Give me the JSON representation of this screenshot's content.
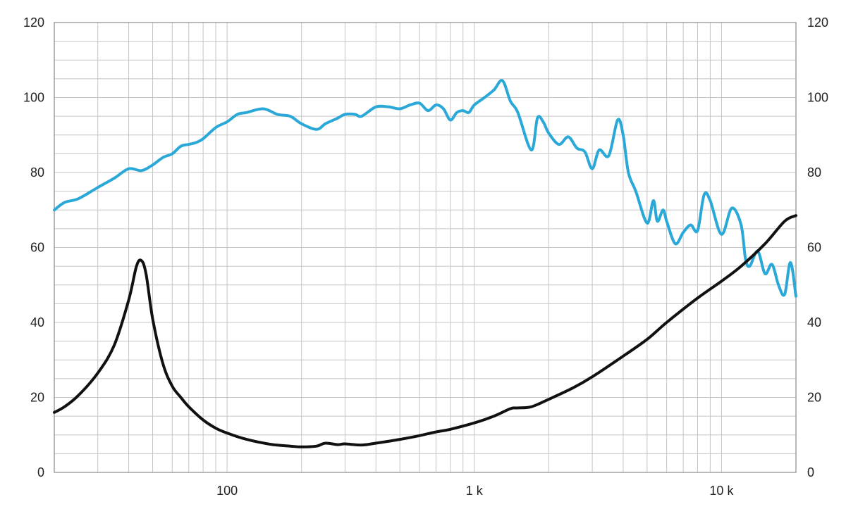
{
  "chart_data": {
    "type": "line",
    "x_scale": "log",
    "xlim": [
      20,
      20000
    ],
    "ylim": [
      0,
      120
    ],
    "grid": true,
    "x_tick_labels": [
      {
        "value": 100,
        "label": "100"
      },
      {
        "value": 1000,
        "label": "1 k"
      },
      {
        "value": 10000,
        "label": "10 k"
      }
    ],
    "y_tick_labels": [
      "0",
      "20",
      "40",
      "60",
      "80",
      "100",
      "120"
    ],
    "y_ticks": [
      0,
      20,
      40,
      60,
      80,
      100,
      120
    ],
    "series": [
      {
        "color": "#2aa8d8",
        "x": [
          20,
          22,
          25,
          30,
          35,
          40,
          45,
          50,
          55,
          60,
          65,
          70,
          75,
          80,
          90,
          100,
          110,
          120,
          140,
          160,
          180,
          200,
          230,
          250,
          280,
          300,
          330,
          350,
          400,
          450,
          500,
          550,
          600,
          650,
          700,
          750,
          800,
          850,
          900,
          950,
          1000,
          1100,
          1200,
          1300,
          1400,
          1500,
          1700,
          1800,
          1900,
          2000,
          2200,
          2400,
          2600,
          2800,
          3000,
          3200,
          3500,
          3800,
          4000,
          4200,
          4500,
          5000,
          5300,
          5500,
          5800,
          6000,
          6500,
          7000,
          7500,
          8000,
          8500,
          9000,
          10000,
          11000,
          12000,
          12500,
          13000,
          14000,
          15000,
          16000,
          17000,
          18000,
          19000,
          20000
        ],
        "y": [
          70,
          72,
          73,
          76,
          78.5,
          81,
          80.5,
          82,
          84,
          85,
          87,
          87.5,
          88,
          89,
          92,
          93.5,
          95.5,
          96,
          97,
          95.5,
          95,
          93,
          91.5,
          93,
          94.5,
          95.5,
          95.5,
          95,
          97.5,
          97.5,
          97,
          98,
          98.5,
          96.5,
          98,
          97,
          94,
          96,
          96.5,
          96,
          98,
          100,
          102,
          104.5,
          99,
          96,
          86,
          94.5,
          93.5,
          90.5,
          87.5,
          89.5,
          86.5,
          85.5,
          81,
          86,
          84.5,
          94,
          90,
          80,
          75,
          66.5,
          72.5,
          67,
          70,
          67,
          61,
          64,
          66,
          64.5,
          74,
          72.5,
          63.5,
          70.5,
          66,
          57,
          55,
          59,
          53,
          55.5,
          50,
          47.5,
          56,
          47
        ]
      },
      {
        "color": "#111111",
        "x": [
          20,
          22,
          25,
          30,
          35,
          40,
          43,
          45,
          47,
          50,
          55,
          60,
          65,
          70,
          80,
          90,
          100,
          120,
          150,
          180,
          200,
          230,
          250,
          280,
          300,
          350,
          400,
          500,
          600,
          700,
          800,
          1000,
          1200,
          1400,
          1500,
          1700,
          2000,
          2500,
          3000,
          4000,
          5000,
          6000,
          8000,
          10000,
          12000,
          15000,
          18000,
          20000
        ],
        "y": [
          16,
          17.5,
          20.5,
          26.5,
          34,
          46,
          55,
          56.5,
          53,
          41,
          29,
          23,
          20,
          17.5,
          14,
          11.8,
          10.5,
          8.8,
          7.5,
          7,
          6.8,
          7,
          7.8,
          7.4,
          7.6,
          7.3,
          7.8,
          8.8,
          9.8,
          10.8,
          11.5,
          13.2,
          15,
          17,
          17.2,
          17.5,
          19.5,
          22.5,
          25.5,
          31,
          35.5,
          40,
          46.5,
          51,
          55,
          61,
          67,
          68.5
        ]
      }
    ]
  }
}
